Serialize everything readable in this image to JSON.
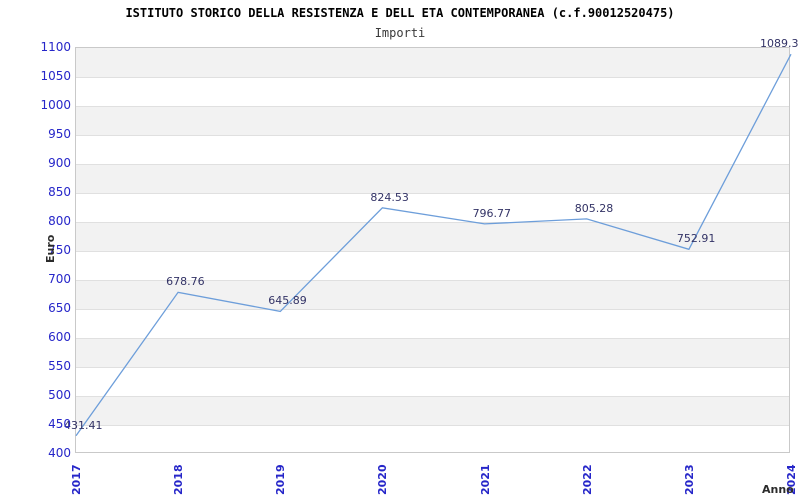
{
  "chart_data": {
    "type": "line",
    "title": "ISTITUTO STORICO DELLA RESISTENZA E DELL ETA CONTEMPORANEA (c.f.90012520475)",
    "subtitle": "Importi",
    "xlabel": "Anno",
    "ylabel": "Euro",
    "categories": [
      "2017",
      "2018",
      "2019",
      "2020",
      "2021",
      "2022",
      "2023",
      "2024"
    ],
    "series": [
      {
        "name": "Importi",
        "values": [
          431.41,
          678.76,
          645.89,
          824.53,
          796.77,
          805.28,
          752.91,
          1089.3
        ]
      }
    ],
    "point_labels": [
      "431.41",
      "678.76",
      "645.89",
      "824.53",
      "796.77",
      "805.28",
      "752.91",
      "1089.3"
    ],
    "ylim": [
      400,
      1100
    ],
    "ytick_step": 50,
    "grid": "horizontal gridlines with alternating gray/white bands",
    "legend_position": "none",
    "colors": {
      "line": "#6d9eda",
      "tick_label": "#2626c9",
      "point_label": "#333366",
      "band": "#f2f2f2",
      "gridline": "#e0e0e0",
      "plot_border": "#c9c9c9",
      "title": "#000000",
      "subtitle": "#3a3a3a",
      "axis_title": "#2b2b2b",
      "background": "#ffffff"
    }
  }
}
